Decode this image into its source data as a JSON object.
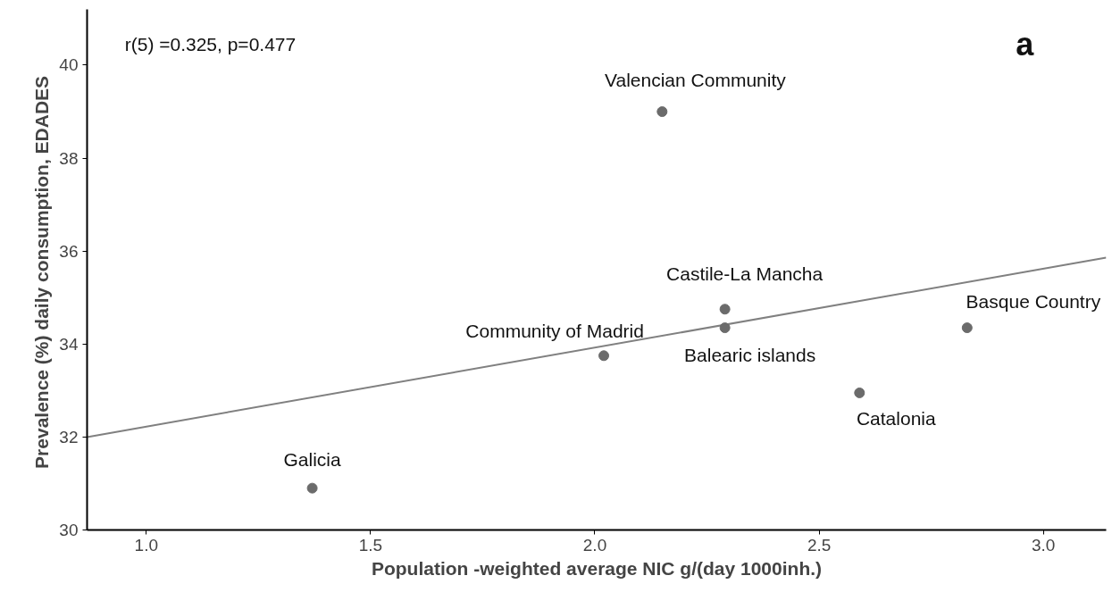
{
  "chart_data": {
    "type": "scatter",
    "xlabel": "Population -weighted average NIC g/(day 1000inh.)",
    "ylabel": "Prevalence (%)  daily consumption, EDADES",
    "xlim": [
      0.868,
      3.14
    ],
    "ylim": [
      30,
      41.2
    ],
    "xticks": [
      {
        "value": 1.0,
        "label": "1.0"
      },
      {
        "value": 1.5,
        "label": "1.5"
      },
      {
        "value": 2.0,
        "label": "2.0"
      },
      {
        "value": 2.5,
        "label": "2.5"
      },
      {
        "value": 3.0,
        "label": "3.0"
      }
    ],
    "yticks": [
      30,
      32,
      34,
      36,
      38,
      40
    ],
    "grid": false,
    "legend": false,
    "marker": "circle",
    "series": [
      {
        "type": "line",
        "color": "#808080",
        "line_style": "solid",
        "marker": "none",
        "x": [
          0.868,
          3.14
        ],
        "values": [
          32.0,
          35.86
        ]
      },
      {
        "name": "Galicia",
        "color": "#6b6b6b",
        "x": [
          1.37
        ],
        "values": [
          30.9
        ]
      },
      {
        "name": "Community  of Madrid",
        "color": "#6b6b6b",
        "x": [
          2.02
        ],
        "values": [
          33.75
        ]
      },
      {
        "name": "Valencian  Community",
        "color": "#6b6b6b",
        "x": [
          2.15
        ],
        "values": [
          39.0
        ]
      },
      {
        "name": "Castile-La Mancha",
        "color": "#6b6b6b",
        "x": [
          2.29
        ],
        "values": [
          34.75
        ]
      },
      {
        "name": "Balearic islands",
        "color": "#6b6b6b",
        "x": [
          2.29
        ],
        "values": [
          34.35
        ]
      },
      {
        "name": "Catalonia",
        "color": "#6b6b6b",
        "x": [
          2.59
        ],
        "values": [
          32.95
        ]
      },
      {
        "name": "Basque  Country",
        "color": "#6b6b6b",
        "x": [
          2.83
        ],
        "values": [
          34.35
        ]
      }
    ],
    "annotations": [
      "r(5) =0.325, p=0.477",
      "a"
    ]
  }
}
